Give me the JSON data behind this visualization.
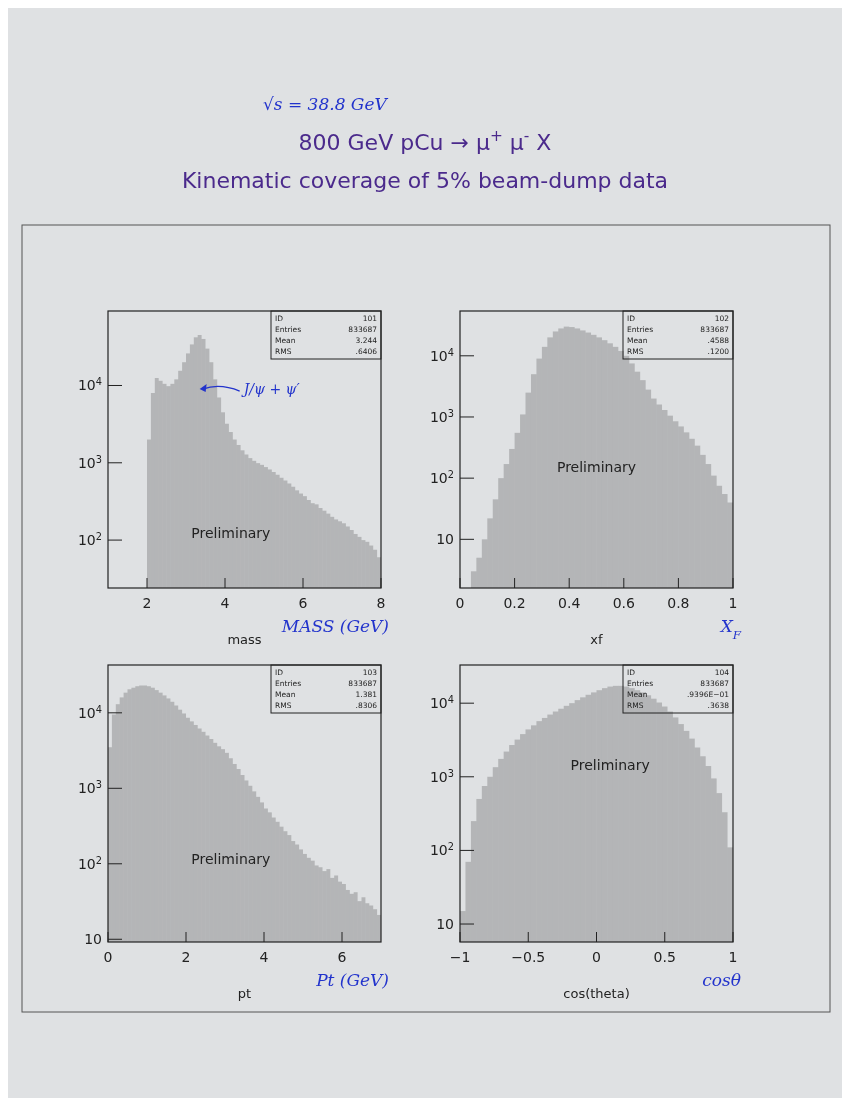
{
  "chart_data": [
    {
      "type": "histogram",
      "title": "800 GeV pCu → μ$^{+}$μ$^{-}$X",
      "subtitle": "Kinematic coverage of 5% beam-dump data",
      "xlabel": "mass",
      "log": true,
      "color": "#1a1a1a",
      "xlim": [
        1,
        8
      ],
      "xticks": [
        2,
        4,
        6,
        8
      ],
      "ylim": [
        24,
        92000
      ],
      "yticks": [
        {
          "value": 100,
          "label": "10$^{2}$"
        },
        {
          "value": 1000,
          "label": "10$^{3}$"
        },
        {
          "value": 10000,
          "label": "10$^{4}$"
        }
      ],
      "bins": [
        2,
        2.1,
        2.2,
        2.3,
        2.4,
        2.5,
        2.6,
        2.7,
        2.8,
        2.9,
        3,
        3.1,
        3.2,
        3.3,
        3.4,
        3.5,
        3.6,
        3.7,
        3.8,
        3.9,
        4,
        4.1,
        4.2,
        4.3,
        4.4,
        4.5,
        4.6,
        4.7,
        4.8,
        4.9,
        5,
        5.1,
        5.2,
        5.3,
        5.4,
        5.5,
        5.6,
        5.7,
        5.8,
        5.9,
        6,
        6.1,
        6.2,
        6.3,
        6.4,
        6.5,
        6.6,
        6.7,
        6.8,
        6.9,
        7,
        7.1,
        7.2,
        7.3,
        7.4,
        7.5,
        7.6,
        7.7,
        7.8,
        7.9,
        8
      ],
      "values": [
        2000,
        8000,
        12500,
        11500,
        10500,
        9800,
        10500,
        12000,
        15500,
        20000,
        26000,
        34000,
        42000,
        45000,
        40000,
        30000,
        20000,
        12000,
        7000,
        4500,
        3200,
        2500,
        2000,
        1700,
        1450,
        1280,
        1150,
        1060,
        990,
        940,
        880,
        820,
        760,
        700,
        640,
        590,
        540,
        490,
        440,
        400,
        370,
        330,
        300,
        290,
        260,
        240,
        220,
        200,
        185,
        175,
        165,
        150,
        135,
        120,
        110,
        100,
        95,
        85,
        75,
        60
      ],
      "annotations": [
        "ID",
        "101",
        "Entries",
        "833687",
        "Mean",
        "3.244",
        "RMS",
        ".6406",
        "Preliminary",
        "MASS (GeV)",
        {
          "text": "J/ψ + ψ′",
          "x": 3.35,
          "y": 9000
        },
        "√s = 38.8 GeV"
      ]
    },
    {
      "type": "histogram",
      "xlabel": "xf",
      "log": true,
      "color": "#1a1a1a",
      "xlim": [
        0,
        1
      ],
      "xticks": [
        0,
        0.2,
        0.4,
        0.6,
        0.8,
        1
      ],
      "ylim": [
        1.6,
        54000
      ],
      "yticks": [
        {
          "value": 10,
          "label": "10"
        },
        {
          "value": 100,
          "label": "10$^{2}$"
        },
        {
          "value": 1000,
          "label": "10$^{3}$"
        },
        {
          "value": 10000,
          "label": "10$^{4}$"
        }
      ],
      "bins": [
        0.04,
        0.06,
        0.08,
        0.1,
        0.12,
        0.14,
        0.16,
        0.18,
        0.2,
        0.22,
        0.24,
        0.26,
        0.28,
        0.3,
        0.32,
        0.34,
        0.36,
        0.38,
        0.4,
        0.42,
        0.44,
        0.46,
        0.48,
        0.5,
        0.52,
        0.54,
        0.56,
        0.58,
        0.6,
        0.62,
        0.64,
        0.66,
        0.68,
        0.7,
        0.72,
        0.74,
        0.76,
        0.78,
        0.8,
        0.82,
        0.84,
        0.86,
        0.88,
        0.9,
        0.92,
        0.94,
        0.96,
        0.98,
        1
      ],
      "values": [
        3,
        5,
        10,
        22,
        45,
        100,
        170,
        300,
        550,
        1100,
        2500,
        5000,
        9000,
        14000,
        20000,
        25000,
        28000,
        30000,
        29500,
        28000,
        26000,
        24000,
        22000,
        20000,
        18000,
        16000,
        14000,
        12000,
        10000,
        7500,
        5500,
        4000,
        2800,
        2000,
        1600,
        1300,
        1050,
        850,
        700,
        560,
        440,
        340,
        240,
        170,
        110,
        75,
        55,
        40
      ],
      "annotations": [
        "ID",
        "102",
        "Entries",
        "833687",
        "Mean",
        ".4588",
        "RMS",
        ".1200",
        "Preliminary",
        "X$_{F}$"
      ]
    },
    {
      "type": "histogram",
      "xlabel": "pt",
      "log": true,
      "color": "#1a1a1a",
      "xlim": [
        0,
        7
      ],
      "xticks": [
        0,
        2,
        4,
        6
      ],
      "ylim": [
        9.2,
        43000
      ],
      "yticks": [
        {
          "value": 10,
          "label": "10"
        },
        {
          "value": 100,
          "label": "10$^{2}$"
        },
        {
          "value": 1000,
          "label": "10$^{3}$"
        },
        {
          "value": 10000,
          "label": "10$^{4}$"
        }
      ],
      "bins": [
        0,
        0.1,
        0.2,
        0.3,
        0.4,
        0.5,
        0.6,
        0.7,
        0.8,
        0.9,
        1,
        1.1,
        1.2,
        1.3,
        1.4,
        1.5,
        1.6,
        1.7,
        1.8,
        1.9,
        2,
        2.1,
        2.2,
        2.3,
        2.4,
        2.5,
        2.6,
        2.7,
        2.8,
        2.9,
        3,
        3.1,
        3.2,
        3.3,
        3.4,
        3.5,
        3.6,
        3.7,
        3.8,
        3.9,
        4,
        4.1,
        4.2,
        4.3,
        4.4,
        4.5,
        4.6,
        4.7,
        4.8,
        4.9,
        5,
        5.1,
        5.2,
        5.3,
        5.4,
        5.5,
        5.6,
        5.7,
        5.8,
        5.9,
        6,
        6.1,
        6.2,
        6.3,
        6.4,
        6.5,
        6.6,
        6.7,
        6.8,
        6.9,
        7
      ],
      "values": [
        3500,
        9500,
        13000,
        16000,
        18500,
        20500,
        21500,
        22500,
        23000,
        23000,
        22500,
        21500,
        20000,
        18500,
        17000,
        15500,
        14000,
        12500,
        11000,
        9800,
        8600,
        7700,
        6900,
        6200,
        5600,
        5000,
        4500,
        4000,
        3600,
        3300,
        2950,
        2500,
        2100,
        1800,
        1500,
        1270,
        1080,
        910,
        770,
        650,
        540,
        480,
        410,
        360,
        310,
        270,
        240,
        200,
        180,
        155,
        135,
        120,
        110,
        95,
        90,
        80,
        85,
        65,
        70,
        58,
        54,
        45,
        40,
        42,
        32,
        36,
        30,
        28,
        25,
        21
      ],
      "annotations": [
        "ID",
        "103",
        "Entries",
        "833687",
        "Mean",
        "1.381",
        "RMS",
        ".8306",
        "Preliminary",
        "Pt (GeV)"
      ]
    },
    {
      "type": "histogram",
      "xlabel": "cos(theta)",
      "log": true,
      "color": "#1a1a1a",
      "xlim": [
        -1,
        1
      ],
      "xticks": [
        {
          "value": -1,
          "label": "−1"
        },
        {
          "value": -0.5,
          "label": "−0.5"
        },
        0,
        0.5,
        1
      ],
      "ylim": [
        5.7,
        33000
      ],
      "yticks": [
        {
          "value": 10,
          "label": "10"
        },
        {
          "value": 100,
          "label": "10$^{2}$"
        },
        {
          "value": 1000,
          "label": "10$^{3}$"
        },
        {
          "value": 10000,
          "label": "10$^{4}$"
        }
      ],
      "bins": [
        -1,
        -0.96,
        -0.92,
        -0.88,
        -0.84,
        -0.8,
        -0.76,
        -0.72,
        -0.68,
        -0.64,
        -0.6,
        -0.56,
        -0.52,
        -0.48,
        -0.44,
        -0.4,
        -0.36,
        -0.32,
        -0.28,
        -0.24,
        -0.2,
        -0.16,
        -0.12,
        -0.08,
        -0.04,
        0,
        0.04,
        0.08,
        0.12,
        0.16,
        0.2,
        0.24,
        0.28,
        0.32,
        0.36,
        0.4,
        0.44,
        0.48,
        0.52,
        0.56,
        0.6,
        0.64,
        0.68,
        0.72,
        0.76,
        0.8,
        0.84,
        0.88,
        0.92,
        0.96,
        1
      ],
      "values": [
        15,
        70,
        250,
        500,
        750,
        1000,
        1350,
        1750,
        2200,
        2700,
        3200,
        3800,
        4400,
        5000,
        5700,
        6300,
        7000,
        7700,
        8400,
        9200,
        10000,
        11000,
        12000,
        13000,
        14000,
        15000,
        16000,
        16800,
        17200,
        17200,
        16800,
        16000,
        15000,
        14000,
        12800,
        11500,
        10200,
        9000,
        7700,
        6400,
        5200,
        4200,
        3300,
        2500,
        1900,
        1400,
        950,
        600,
        330,
        110
      ],
      "annotations": [
        "ID",
        "104",
        "Entries",
        "833687",
        "Mean",
        ".9396E−01",
        "RMS",
        ".3638",
        "Preliminary",
        "cosθ"
      ]
    }
  ]
}
